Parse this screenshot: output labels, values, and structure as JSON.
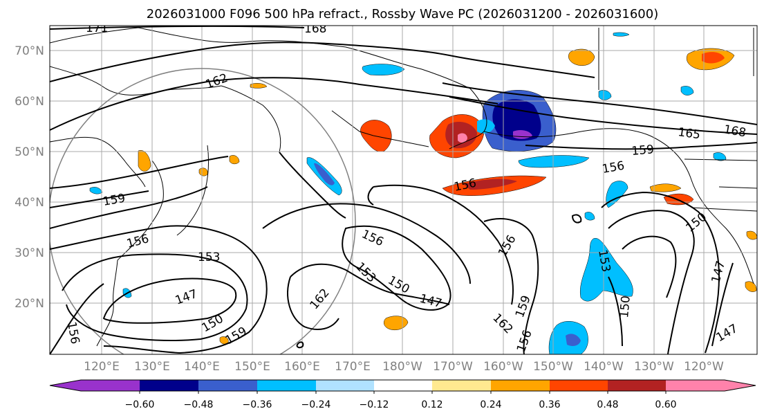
{
  "title": "2026031000 F096 500 hPa refract., Rossby Wave PC (2026031200 - 2026031600)",
  "latitude_labels": [
    "70°N",
    "60°N",
    "50°N",
    "40°N",
    "30°N",
    "20°N"
  ],
  "longitude_labels": [
    "120°E",
    "130°E",
    "140°E",
    "150°E",
    "160°E",
    "170°E",
    "180°W",
    "170°W",
    "160°W",
    "150°W",
    "140°W",
    "130°W",
    "120°W"
  ],
  "contour_labels": [
    "171",
    "168",
    "162",
    "159",
    "156",
    "156",
    "153",
    "150",
    "147",
    "156",
    "165",
    "168",
    "159",
    "156",
    "156",
    "153",
    "150",
    "147",
    "162",
    "162",
    "159",
    "156",
    "153",
    "150",
    "150",
    "147",
    "147",
    "159",
    "156"
  ],
  "colorbar": {
    "ticks": [
      "−0.60",
      "−0.48",
      "−0.36",
      "−0.24",
      "−0.12",
      "0.12",
      "0.24",
      "0.36",
      "0.48",
      "0.60"
    ],
    "colors": [
      "#9932cc",
      "#00008b",
      "#3a5fcd",
      "#00bfff",
      "#b0e2ff",
      "#ffffff",
      "#ffe990",
      "#ffa500",
      "#ff4500",
      "#b22222",
      "#ff82ab"
    ]
  }
}
